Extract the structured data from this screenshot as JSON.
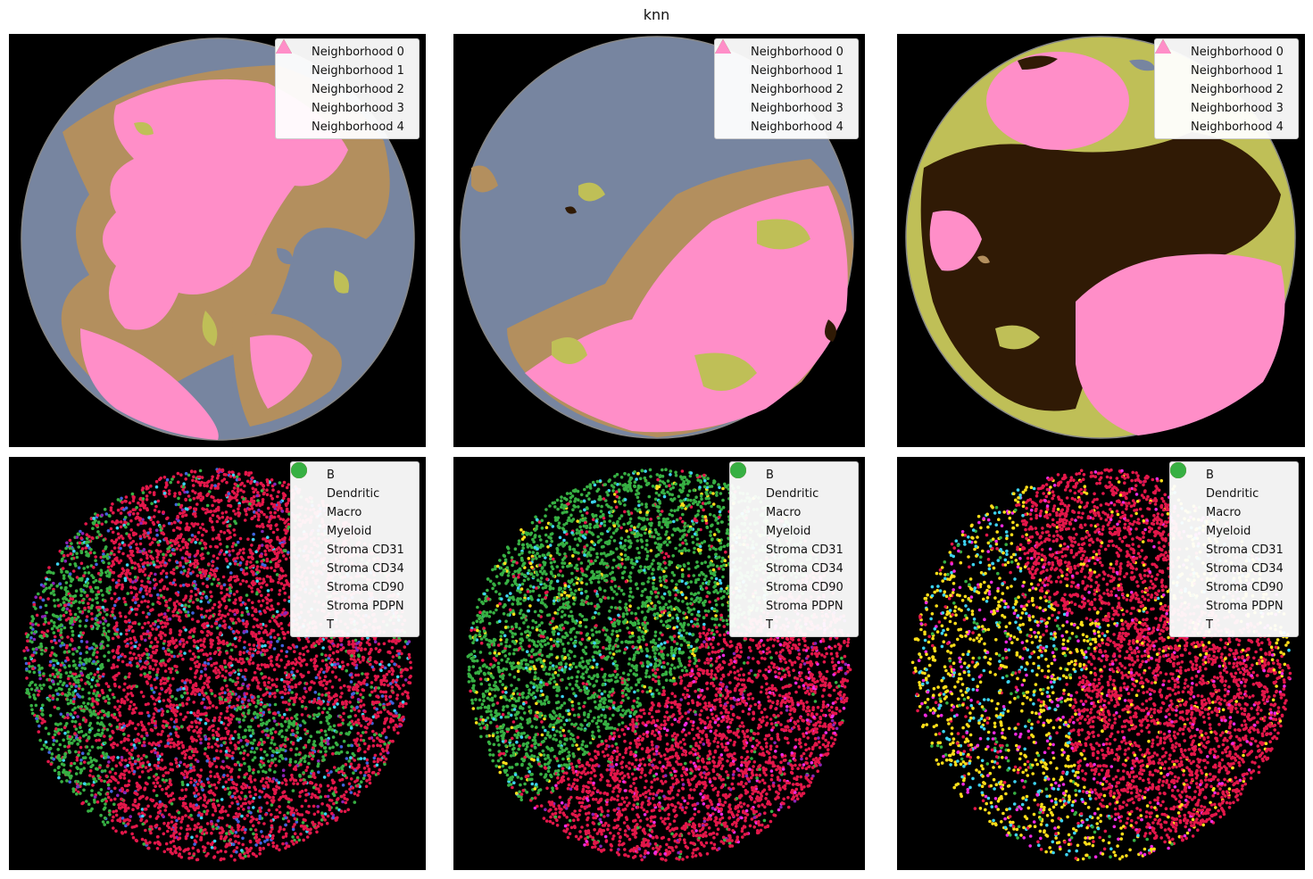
{
  "figure": {
    "title": "knn"
  },
  "neighborhood_legend": [
    {
      "label": "Neighborhood 0",
      "color": "#7785a0",
      "marker": "triangle"
    },
    {
      "label": "Neighborhood 1",
      "color": "#b38f5e",
      "marker": "triangle"
    },
    {
      "label": "Neighborhood 2",
      "color": "#301a05",
      "marker": "triangle"
    },
    {
      "label": "Neighborhood 3",
      "color": "#bfbf57",
      "marker": "triangle"
    },
    {
      "label": "Neighborhood 4",
      "color": "#ff8ec8",
      "marker": "triangle"
    }
  ],
  "celltype_legend": [
    {
      "label": "B",
      "color": "#e3174a",
      "marker": "circle"
    },
    {
      "label": "Dendritic",
      "color": "#4163dc",
      "marker": "circle"
    },
    {
      "label": "Macro",
      "color": "#8a23b5",
      "marker": "circle"
    },
    {
      "label": "Myeloid",
      "color": "#ffde1a",
      "marker": "circle"
    },
    {
      "label": "Stroma CD31",
      "color": "#bde93d",
      "marker": "circle"
    },
    {
      "label": "Stroma CD34",
      "color": "#3dd3f0",
      "marker": "circle"
    },
    {
      "label": "Stroma CD90",
      "color": "#f02ae0",
      "marker": "circle"
    },
    {
      "label": "Stroma PDPN",
      "color": "#f4822a",
      "marker": "circle"
    },
    {
      "label": "T",
      "color": "#37b043",
      "marker": "circle"
    }
  ],
  "chart_data": [
    {
      "type": "heatmap",
      "panel": "neighborhoods-1",
      "series_names": [
        "Neighborhood 0",
        "Neighborhood 1",
        "Neighborhood 2",
        "Neighborhood 3",
        "Neighborhood 4"
      ],
      "dominant_regions": [
        "Neighborhood 0 left/right edges",
        "Neighborhood 4 center",
        "Neighborhood 1 borders"
      ]
    },
    {
      "type": "heatmap",
      "panel": "neighborhoods-2",
      "series_names": [
        "Neighborhood 0",
        "Neighborhood 1",
        "Neighborhood 2",
        "Neighborhood 3",
        "Neighborhood 4"
      ],
      "dominant_regions": [
        "Neighborhood 0 upper-left",
        "Neighborhood 4 lower-right",
        "Neighborhood 3 patches"
      ]
    },
    {
      "type": "heatmap",
      "panel": "neighborhoods-3",
      "series_names": [
        "Neighborhood 0",
        "Neighborhood 1",
        "Neighborhood 2",
        "Neighborhood 3",
        "Neighborhood 4"
      ],
      "dominant_regions": [
        "Neighborhood 2 center",
        "Neighborhood 4 top and lower-right",
        "Neighborhood 3 periphery"
      ]
    },
    {
      "type": "scatter",
      "panel": "celltypes-1",
      "series_names": [
        "B",
        "Dendritic",
        "Macro",
        "Myeloid",
        "Stroma CD31",
        "Stroma CD34",
        "Stroma CD90",
        "Stroma PDPN",
        "T"
      ]
    },
    {
      "type": "scatter",
      "panel": "celltypes-2",
      "series_names": [
        "B",
        "Dendritic",
        "Macro",
        "Myeloid",
        "Stroma CD31",
        "Stroma CD34",
        "Stroma CD90",
        "Stroma PDPN",
        "T"
      ]
    },
    {
      "type": "scatter",
      "panel": "celltypes-3",
      "series_names": [
        "B",
        "Dendritic",
        "Macro",
        "Myeloid",
        "Stroma CD31",
        "Stroma CD34",
        "Stroma CD90",
        "Stroma PDPN",
        "T"
      ]
    }
  ]
}
